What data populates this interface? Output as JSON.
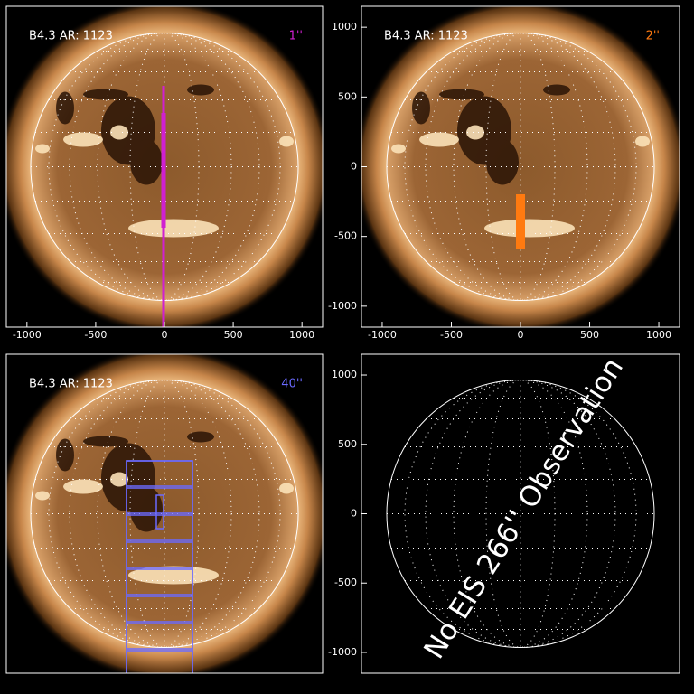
{
  "panels": [
    {
      "title": "B4.3 AR: 1123",
      "slit": "1''",
      "slit_color": "#d020d0",
      "xlim": [
        -1150,
        1150
      ],
      "ylim": [
        -1150,
        1150
      ],
      "xticks": [
        -1000,
        -500,
        0,
        500,
        1000
      ],
      "yticks": []
    },
    {
      "title": "B4.3 AR: 1123",
      "slit": "2''",
      "slit_color": "#ff7a10",
      "xlim": [
        -1150,
        1150
      ],
      "ylim": [
        -1150,
        1150
      ],
      "xticks": [
        -1000,
        -500,
        0,
        500,
        1000
      ],
      "yticks": [
        1000,
        500,
        0,
        -500,
        -1000
      ]
    },
    {
      "title": "B4.3 AR: 1123",
      "slit": "40''",
      "slit_color": "#6a6aff",
      "xlim": [
        -1150,
        1150
      ],
      "ylim": [
        -1150,
        1150
      ],
      "xticks": [],
      "yticks": []
    },
    {
      "xlim": [
        -1150,
        1150
      ],
      "ylim": [
        -1150,
        1150
      ],
      "xticks": [],
      "yticks": [
        1000,
        500,
        0,
        -500,
        -1000
      ],
      "message": "No EIS 266'' Observation"
    }
  ]
}
